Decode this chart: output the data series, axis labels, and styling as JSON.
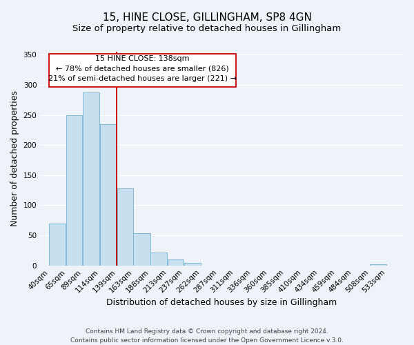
{
  "title": "15, HINE CLOSE, GILLINGHAM, SP8 4GN",
  "subtitle": "Size of property relative to detached houses in Gillingham",
  "xlabel": "Distribution of detached houses by size in Gillingham",
  "ylabel": "Number of detached properties",
  "bar_left_edges": [
    40,
    65,
    89,
    114,
    139,
    163,
    188,
    213,
    237,
    262,
    287,
    311,
    336,
    360,
    385,
    410,
    434,
    459,
    484,
    508
  ],
  "bar_widths": [
    25,
    24,
    25,
    25,
    24,
    25,
    25,
    24,
    25,
    25,
    24,
    25,
    24,
    25,
    25,
    24,
    25,
    25,
    24,
    25
  ],
  "bar_heights": [
    70,
    250,
    287,
    235,
    128,
    54,
    22,
    10,
    4,
    0,
    0,
    0,
    0,
    0,
    0,
    0,
    0,
    0,
    0,
    2
  ],
  "bar_color": "#c8dff0",
  "bar_edgecolor": "#7fb8d8",
  "vline_x": 139,
  "vline_color": "#cc0000",
  "ylim": [
    0,
    355
  ],
  "yticks": [
    0,
    50,
    100,
    150,
    200,
    250,
    300,
    350
  ],
  "xtick_labels": [
    "40sqm",
    "65sqm",
    "89sqm",
    "114sqm",
    "139sqm",
    "163sqm",
    "188sqm",
    "213sqm",
    "237sqm",
    "262sqm",
    "287sqm",
    "311sqm",
    "336sqm",
    "360sqm",
    "385sqm",
    "410sqm",
    "434sqm",
    "459sqm",
    "484sqm",
    "508sqm",
    "533sqm"
  ],
  "xtick_positions": [
    40,
    65,
    89,
    114,
    139,
    163,
    188,
    213,
    237,
    262,
    287,
    311,
    336,
    360,
    385,
    410,
    434,
    459,
    484,
    508,
    533
  ],
  "ann_line1": "15 HINE CLOSE: 138sqm",
  "ann_line2": "← 78% of detached houses are smaller (826)",
  "ann_line3": "21% of semi-detached houses are larger (221) →",
  "footer_line1": "Contains HM Land Registry data © Crown copyright and database right 2024.",
  "footer_line2": "Contains public sector information licensed under the Open Government Licence v.3.0.",
  "background_color": "#eef3f9",
  "grid_color": "#ffffff",
  "title_fontsize": 11,
  "subtitle_fontsize": 9.5,
  "axis_label_fontsize": 9,
  "tick_fontsize": 7.5,
  "ann_fontsize": 8,
  "footer_fontsize": 6.5,
  "xlim_left": 27,
  "xlim_right": 558
}
